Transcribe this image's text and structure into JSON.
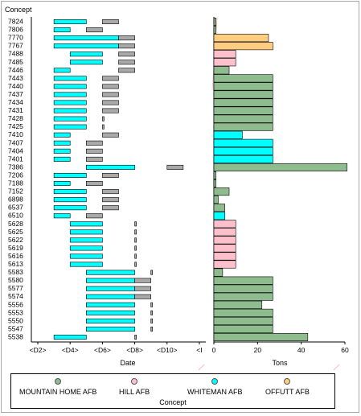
{
  "chart_data": {
    "type": "bar",
    "title": "Concept",
    "categories": [
      "7824",
      "7806",
      "7770",
      "7767",
      "7488",
      "7485",
      "7446",
      "7443",
      "7440",
      "7437",
      "7434",
      "7431",
      "7428",
      "7425",
      "7410",
      "7407",
      "7404",
      "7401",
      "7386",
      "7206",
      "7188",
      "7152",
      "6898",
      "6537",
      "6510",
      "5628",
      "5625",
      "5622",
      "5619",
      "5616",
      "5613",
      "5583",
      "5580",
      "5577",
      "5574",
      "5556",
      "5553",
      "5550",
      "5547",
      "5538"
    ],
    "left_panel": {
      "xlabel": "Date",
      "tick_labels": [
        "<D2>",
        "<D4>",
        "<D6>",
        "<D8>",
        "<D10>",
        "<I"
      ],
      "tick_values": [
        2,
        4,
        6,
        8,
        10,
        12
      ],
      "xlim": [
        1.6,
        12.4
      ],
      "gantt": [
        {
          "concept": "7824",
          "start_a": 3,
          "end_a": 5,
          "start_b": 6,
          "end_b": 7
        },
        {
          "concept": "7806",
          "start_a": 3,
          "end_a": 4,
          "start_b": 5,
          "end_b": 6
        },
        {
          "concept": "7770",
          "start_a": 3,
          "end_a": 7,
          "start_b": 7,
          "end_b": 8
        },
        {
          "concept": "7767",
          "start_a": 3,
          "end_a": 7,
          "start_b": 7,
          "end_b": 8
        },
        {
          "concept": "7488",
          "start_a": 4,
          "end_a": 6,
          "start_b": 7,
          "end_b": 8
        },
        {
          "concept": "7485",
          "start_a": 4,
          "end_a": 6,
          "start_b": 7,
          "end_b": 8
        },
        {
          "concept": "7446",
          "start_a": 3,
          "end_a": 4,
          "start_b": 7,
          "end_b": 8
        },
        {
          "concept": "7443",
          "start_a": 3,
          "end_a": 5,
          "start_b": 6,
          "end_b": 7
        },
        {
          "concept": "7440",
          "start_a": 3,
          "end_a": 5,
          "start_b": 6,
          "end_b": 7
        },
        {
          "concept": "7437",
          "start_a": 3,
          "end_a": 5,
          "start_b": 6,
          "end_b": 7
        },
        {
          "concept": "7434",
          "start_a": 3,
          "end_a": 5,
          "start_b": 6,
          "end_b": 7
        },
        {
          "concept": "7431",
          "start_a": 3,
          "end_a": 5,
          "start_b": 6,
          "end_b": 7
        },
        {
          "concept": "7428",
          "start_a": 3,
          "end_a": 5,
          "start_b": 6,
          "end_b": 6.1
        },
        {
          "concept": "7425",
          "start_a": 3,
          "end_a": 5,
          "start_b": 6,
          "end_b": 6.1
        },
        {
          "concept": "7410",
          "start_a": 3,
          "end_a": 4,
          "start_b": 6,
          "end_b": 7
        },
        {
          "concept": "7407",
          "start_a": 3,
          "end_a": 4,
          "start_b": 5,
          "end_b": 6
        },
        {
          "concept": "7404",
          "start_a": 3,
          "end_a": 4,
          "start_b": 5,
          "end_b": 6
        },
        {
          "concept": "7401",
          "start_a": 3,
          "end_a": 4,
          "start_b": 5,
          "end_b": 6
        },
        {
          "concept": "7386",
          "start_a": 5,
          "end_a": 8,
          "start_b": 10,
          "end_b": 11
        },
        {
          "concept": "7206",
          "start_a": 3,
          "end_a": 5,
          "start_b": 6,
          "end_b": 7
        },
        {
          "concept": "7188",
          "start_a": 3,
          "end_a": 4,
          "start_b": 5,
          "end_b": 6
        },
        {
          "concept": "7152",
          "start_a": 3,
          "end_a": 5,
          "start_b": 6,
          "end_b": 7
        },
        {
          "concept": "6898",
          "start_a": 3,
          "end_a": 5,
          "start_b": 6,
          "end_b": 7
        },
        {
          "concept": "6537",
          "start_a": 3,
          "end_a": 5,
          "start_b": 6,
          "end_b": 7
        },
        {
          "concept": "6510",
          "start_a": 3,
          "end_a": 4,
          "start_b": 5,
          "end_b": 6
        },
        {
          "concept": "5628",
          "start_a": 4,
          "end_a": 6,
          "start_b": 8,
          "end_b": 8.1
        },
        {
          "concept": "5625",
          "start_a": 4,
          "end_a": 6,
          "start_b": 8,
          "end_b": 8.1
        },
        {
          "concept": "5622",
          "start_a": 4,
          "end_a": 6,
          "start_b": 8,
          "end_b": 8.1
        },
        {
          "concept": "5619",
          "start_a": 4,
          "end_a": 6,
          "start_b": 8,
          "end_b": 8.1
        },
        {
          "concept": "5616",
          "start_a": 4,
          "end_a": 6,
          "start_b": 8,
          "end_b": 8.1
        },
        {
          "concept": "5613",
          "start_a": 4,
          "end_a": 6,
          "start_b": 8,
          "end_b": 8.1
        },
        {
          "concept": "5583",
          "start_a": 5,
          "end_a": 8,
          "start_b": 9,
          "end_b": 9.1
        },
        {
          "concept": "5580",
          "start_a": 5,
          "end_a": 8,
          "start_b": 8,
          "end_b": 9
        },
        {
          "concept": "5577",
          "start_a": 5,
          "end_a": 8,
          "start_b": 8,
          "end_b": 9
        },
        {
          "concept": "5574",
          "start_a": 5,
          "end_a": 8,
          "start_b": 8,
          "end_b": 9
        },
        {
          "concept": "5556",
          "start_a": 5,
          "end_a": 8,
          "start_b": 9,
          "end_b": 9.1
        },
        {
          "concept": "5553",
          "start_a": 5,
          "end_a": 8,
          "start_b": 9,
          "end_b": 9.1
        },
        {
          "concept": "5550",
          "start_a": 5,
          "end_a": 8,
          "start_b": 9,
          "end_b": 9.1
        },
        {
          "concept": "5547",
          "start_a": 5,
          "end_a": 8,
          "start_b": 9,
          "end_b": 9.1
        },
        {
          "concept": "5538",
          "start_a": 3,
          "end_a": 5,
          "start_b": 8,
          "end_b": 8.1
        }
      ]
    },
    "right_panel": {
      "xlabel": "Tons",
      "xlim": [
        0,
        60
      ],
      "ticks": [
        0,
        20,
        40,
        60
      ],
      "values": [
        1,
        1,
        25,
        27,
        10,
        10,
        7,
        27,
        27,
        27,
        27,
        27,
        27,
        27,
        13,
        27,
        27,
        27,
        61,
        1,
        1,
        7,
        2,
        5,
        5,
        10,
        10,
        10,
        10,
        10,
        10,
        4,
        27,
        27,
        27,
        22,
        27,
        27,
        27,
        43
      ],
      "base": [
        "MOUNTAIN HOME AFB",
        "MOUNTAIN HOME AFB",
        "OFFUTT AFB",
        "OFFUTT AFB",
        "HILL AFB",
        "HILL AFB",
        "MOUNTAIN HOME AFB",
        "MOUNTAIN HOME AFB",
        "MOUNTAIN HOME AFB",
        "MOUNTAIN HOME AFB",
        "MOUNTAIN HOME AFB",
        "MOUNTAIN HOME AFB",
        "MOUNTAIN HOME AFB",
        "MOUNTAIN HOME AFB",
        "WHITEMAN AFB",
        "WHITEMAN AFB",
        "WHITEMAN AFB",
        "WHITEMAN AFB",
        "MOUNTAIN HOME AFB",
        "MOUNTAIN HOME AFB",
        "MOUNTAIN HOME AFB",
        "MOUNTAIN HOME AFB",
        "MOUNTAIN HOME AFB",
        "MOUNTAIN HOME AFB",
        "WHITEMAN AFB",
        "HILL AFB",
        "HILL AFB",
        "HILL AFB",
        "HILL AFB",
        "HILL AFB",
        "HILL AFB",
        "MOUNTAIN HOME AFB",
        "MOUNTAIN HOME AFB",
        "MOUNTAIN HOME AFB",
        "MOUNTAIN HOME AFB",
        "MOUNTAIN HOME AFB",
        "MOUNTAIN HOME AFB",
        "MOUNTAIN HOME AFB",
        "MOUNTAIN HOME AFB",
        "MOUNTAIN HOME AFB"
      ]
    },
    "legend": {
      "title": "Concept",
      "items": [
        {
          "label": "MOUNTAIN HOME AFB",
          "color": "#8fbc8f"
        },
        {
          "label": "HILL AFB",
          "color": "#ffc0cb"
        },
        {
          "label": "WHITEMAN AFB",
          "color": "#00ffff"
        },
        {
          "label": "OFFUTT AFB",
          "color": "#ffcc80"
        }
      ]
    },
    "colors": {
      "bar_a": "#00ffff",
      "bar_b": "#a9a9a9",
      "bar_outline": "#000000"
    }
  }
}
